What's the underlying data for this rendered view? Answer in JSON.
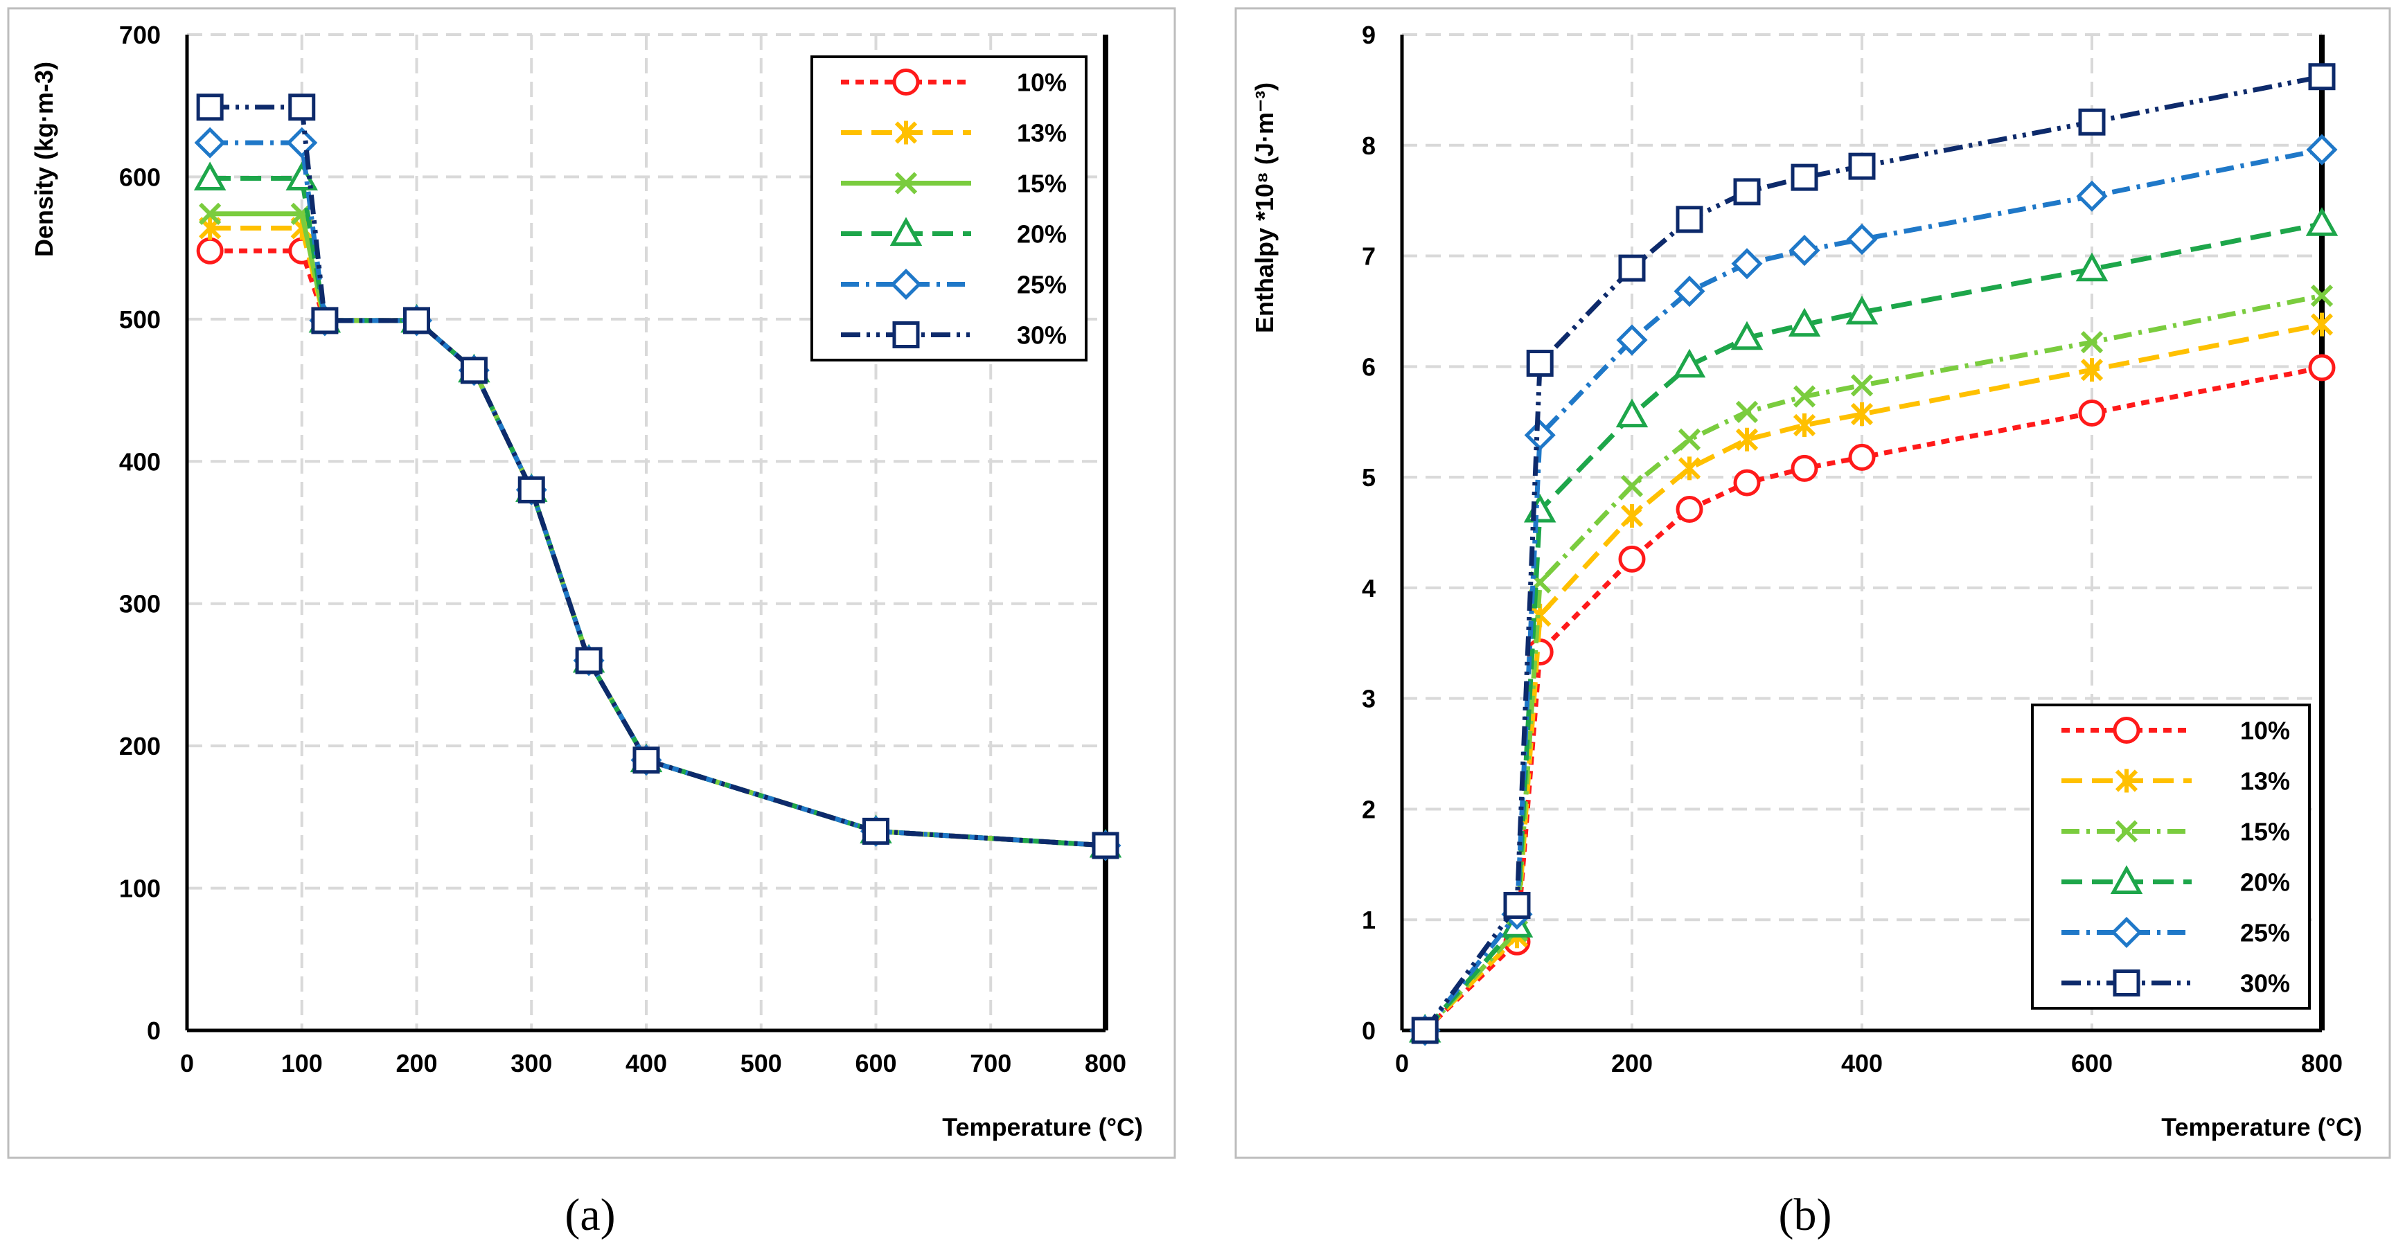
{
  "figure": {
    "caption_a": "(a)",
    "caption_b": "(b)"
  },
  "chart_data": [
    {
      "type": "line",
      "panel": "a",
      "title": "",
      "xlabel": "Temperature (°C)",
      "ylabel": "Density (kg·m-3)",
      "xlim": [
        0,
        800
      ],
      "ylim": [
        0,
        700
      ],
      "xticks": [
        0,
        100,
        200,
        300,
        400,
        500,
        600,
        700,
        800
      ],
      "yticks": [
        0,
        100,
        200,
        300,
        400,
        500,
        600,
        700
      ],
      "grid": true,
      "legend_position": "top-right",
      "series": [
        {
          "name": "10%",
          "color": "#FF1A1A",
          "dash": "dash",
          "marker": "circle",
          "x": [
            20,
            100,
            120,
            200,
            250,
            300,
            350,
            400,
            600,
            800
          ],
          "y": [
            548,
            548,
            499,
            499,
            464,
            380,
            260,
            190,
            140,
            130
          ]
        },
        {
          "name": "13%",
          "color": "#FFC000",
          "dash": "longdash",
          "marker": "star",
          "x": [
            20,
            100,
            120,
            200,
            250,
            300,
            350,
            400,
            600,
            800
          ],
          "y": [
            564,
            564,
            499,
            499,
            464,
            380,
            260,
            190,
            140,
            130
          ]
        },
        {
          "name": "15%",
          "color": "#7ACC3E",
          "dash": "solid",
          "marker": "x",
          "x": [
            20,
            100,
            120,
            200,
            250,
            300,
            350,
            400,
            600,
            800
          ],
          "y": [
            574,
            574,
            499,
            499,
            464,
            380,
            260,
            190,
            140,
            130
          ]
        },
        {
          "name": "20%",
          "color": "#1DA64A",
          "dash": "longdash",
          "marker": "triangle",
          "x": [
            20,
            100,
            120,
            200,
            250,
            300,
            350,
            400,
            600,
            800
          ],
          "y": [
            599,
            599,
            499,
            499,
            464,
            380,
            260,
            190,
            140,
            130
          ]
        },
        {
          "name": "25%",
          "color": "#1F78C8",
          "dash": "dashdot",
          "marker": "diamond",
          "x": [
            20,
            100,
            120,
            200,
            250,
            300,
            350,
            400,
            600,
            800
          ],
          "y": [
            624,
            624,
            499,
            499,
            464,
            380,
            260,
            190,
            140,
            130
          ]
        },
        {
          "name": "30%",
          "color": "#0D2A6B",
          "dash": "dashdotdot",
          "marker": "square",
          "x": [
            20,
            100,
            120,
            200,
            250,
            300,
            350,
            400,
            600,
            800
          ],
          "y": [
            649,
            649,
            499,
            499,
            464,
            380,
            260,
            190,
            140,
            130
          ]
        }
      ]
    },
    {
      "type": "line",
      "panel": "b",
      "title": "",
      "xlabel": "Temperature (°C)",
      "ylabel": "Enthalpy *10⁸ (J·m⁻³)",
      "xlim": [
        0,
        800
      ],
      "ylim": [
        0,
        9
      ],
      "xticks": [
        0,
        200,
        400,
        600,
        800
      ],
      "yticks": [
        0,
        1,
        2,
        3,
        4,
        5,
        6,
        7,
        8,
        9
      ],
      "grid": true,
      "legend_position": "bottom-right",
      "series": [
        {
          "name": "10%",
          "color": "#FF1A1A",
          "dash": "dash",
          "marker": "circle",
          "x": [
            20,
            100,
            120,
            200,
            250,
            300,
            350,
            400,
            600,
            800
          ],
          "y": [
            0,
            0.8,
            3.42,
            4.26,
            4.71,
            4.95,
            5.08,
            5.18,
            5.58,
            5.99
          ]
        },
        {
          "name": "13%",
          "color": "#FFC000",
          "dash": "longdash",
          "marker": "star",
          "x": [
            20,
            100,
            120,
            200,
            250,
            300,
            350,
            400,
            600,
            800
          ],
          "y": [
            0,
            0.85,
            3.75,
            4.65,
            5.08,
            5.34,
            5.47,
            5.57,
            5.97,
            6.38
          ]
        },
        {
          "name": "15%",
          "color": "#7ACC3E",
          "dash": "dashdot",
          "marker": "x",
          "x": [
            20,
            100,
            120,
            200,
            250,
            300,
            350,
            400,
            600,
            800
          ],
          "y": [
            0,
            0.9,
            4.05,
            4.92,
            5.34,
            5.59,
            5.73,
            5.83,
            6.22,
            6.64
          ]
        },
        {
          "name": "20%",
          "color": "#1DA64A",
          "dash": "longdash",
          "marker": "triangle",
          "x": [
            20,
            100,
            120,
            200,
            250,
            300,
            350,
            400,
            600,
            800
          ],
          "y": [
            0,
            0.95,
            4.7,
            5.56,
            6.01,
            6.26,
            6.38,
            6.49,
            6.88,
            7.29
          ]
        },
        {
          "name": "25%",
          "color": "#1F78C8",
          "dash": "dashdot",
          "marker": "diamond",
          "x": [
            20,
            100,
            120,
            200,
            250,
            300,
            350,
            400,
            600,
            800
          ],
          "y": [
            0,
            1.05,
            5.38,
            6.24,
            6.68,
            6.93,
            7.05,
            7.15,
            7.54,
            7.96
          ]
        },
        {
          "name": "30%",
          "color": "#0D2A6B",
          "dash": "dashdotdot",
          "marker": "square",
          "x": [
            20,
            100,
            120,
            200,
            250,
            300,
            350,
            400,
            600,
            800
          ],
          "y": [
            0,
            1.13,
            6.03,
            6.89,
            7.33,
            7.58,
            7.71,
            7.81,
            8.21,
            8.62
          ]
        }
      ]
    }
  ]
}
